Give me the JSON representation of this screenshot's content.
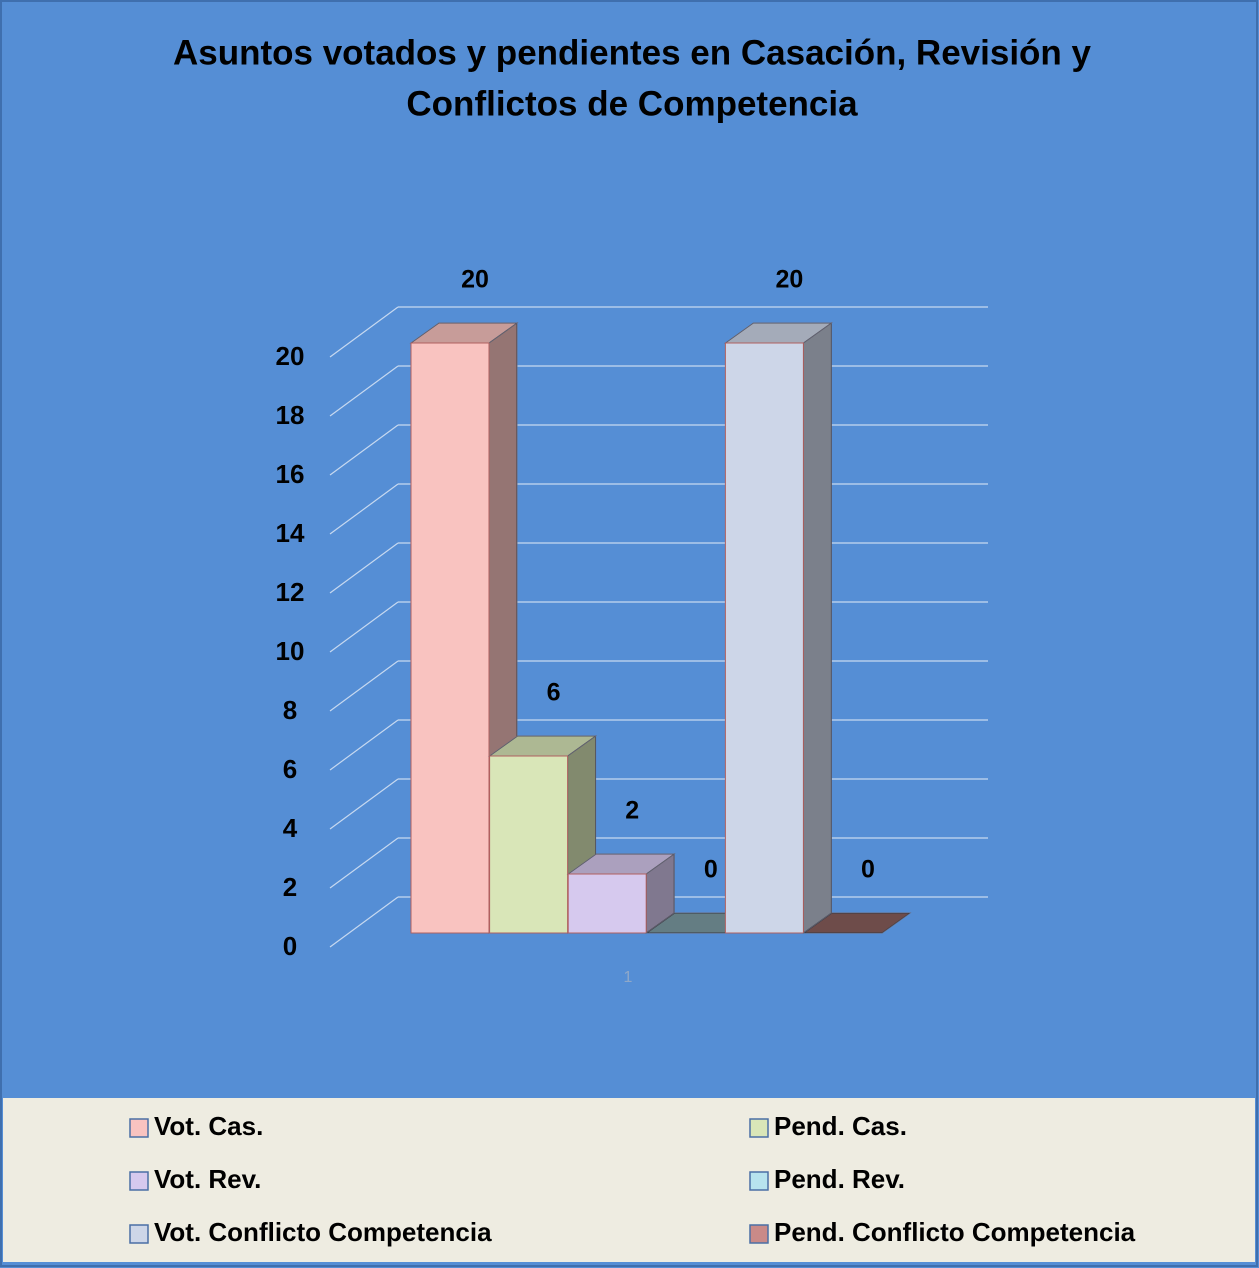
{
  "chart_data": {
    "type": "bar3d",
    "title": [
      "Asuntos votados y pendientes en Casación, Revisión y",
      "Conflictos de Competencia"
    ],
    "categories": [
      "1"
    ],
    "series": [
      {
        "name": "Vot. Cas.",
        "color": "#f9c3c0",
        "values": [
          20
        ]
      },
      {
        "name": "Pend. Cas.",
        "color": "#d9e6b8",
        "values": [
          6
        ]
      },
      {
        "name": "Vot. Rev.",
        "color": "#d6c9ee",
        "values": [
          2
        ]
      },
      {
        "name": "Pend. Rev.",
        "color": "#b7e3ee",
        "values": [
          0
        ]
      },
      {
        "name": "Vot. Conflicto Competencia",
        "color": "#cdd6e8",
        "values": [
          20
        ]
      },
      {
        "name": "Pend. Conflicto Competencia",
        "color": "#c98a88",
        "values": [
          0
        ]
      }
    ],
    "ylim": [
      0,
      20
    ],
    "yticks": [
      0,
      2,
      4,
      6,
      8,
      10,
      12,
      14,
      16,
      18,
      20
    ],
    "grid": true,
    "legend": "bottom"
  }
}
